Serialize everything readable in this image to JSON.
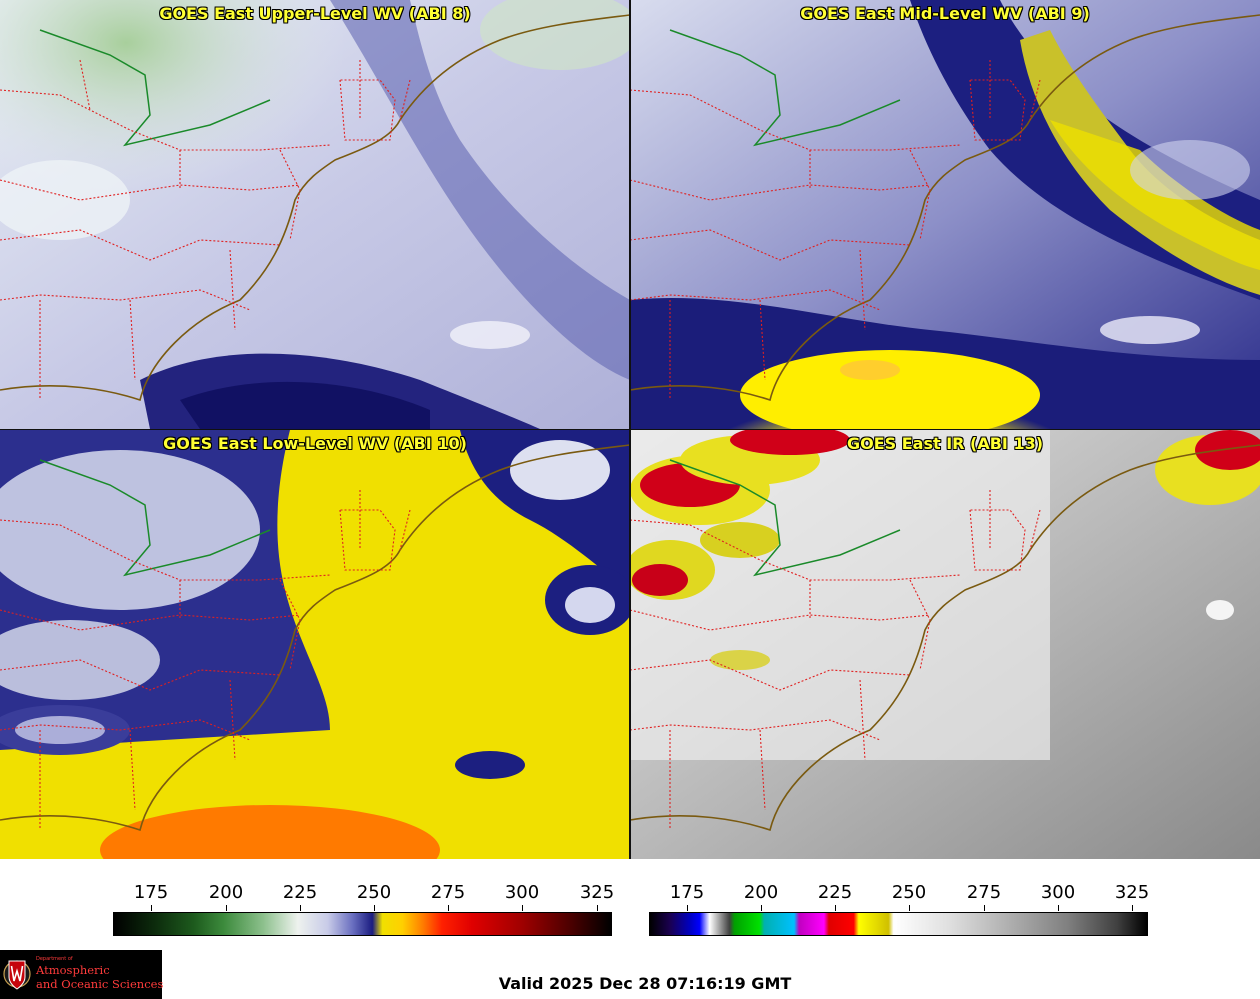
{
  "panels": [
    {
      "title": "GOES East Upper-Level WV (ABI 8)"
    },
    {
      "title": "GOES East Mid-Level WV (ABI 9)"
    },
    {
      "title": "GOES East Low-Level WV (ABI 10)"
    },
    {
      "title": "GOES East IR (ABI 13)"
    }
  ],
  "colorbars": {
    "wv": {
      "ticks": [
        "175",
        "200",
        "225",
        "250",
        "275",
        "300",
        "325"
      ]
    },
    "ir": {
      "ticks": [
        "175",
        "200",
        "225",
        "250",
        "275",
        "300",
        "325"
      ]
    }
  },
  "colors": {
    "state_border": "#e02020",
    "coastline": "#7a5a10",
    "green_line": "#1a8a2a",
    "title_text": "#ffff33"
  },
  "logo": {
    "line_small": "Department of",
    "line1": "Atmospheric",
    "line2": "and Oceanic Sciences"
  },
  "footer": {
    "valid_time": "Valid 2025 Dec 28 07:16:19 GMT"
  }
}
